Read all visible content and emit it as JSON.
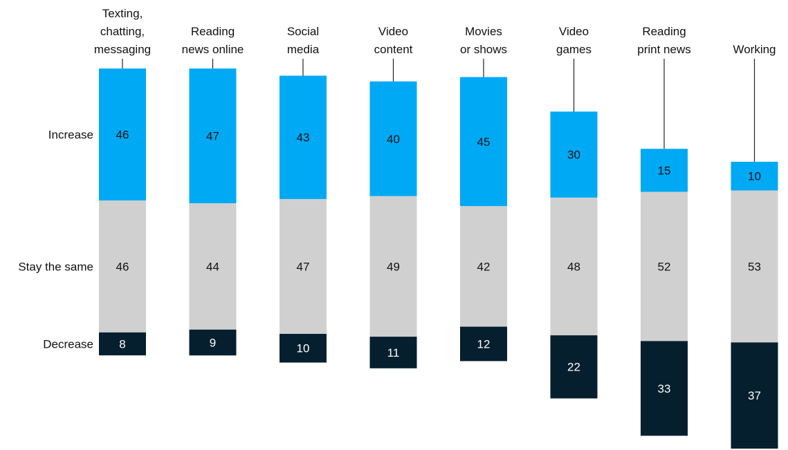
{
  "chart_data": {
    "type": "bar",
    "stacked": true,
    "categories": [
      "Texting, chatting, messaging",
      "Reading news online",
      "Social media",
      "Video content",
      "Movies or shows",
      "Video games",
      "Reading print news",
      "Working"
    ],
    "category_label_lines": [
      [
        "Texting,",
        "chatting,",
        "messaging"
      ],
      [
        "Reading",
        "news online"
      ],
      [
        "Social",
        "media"
      ],
      [
        "Video",
        "content"
      ],
      [
        "Movies",
        "or shows"
      ],
      [
        "Video",
        "games"
      ],
      [
        "Reading",
        "print news"
      ],
      [
        "Working"
      ]
    ],
    "series": [
      {
        "name": "Increase",
        "values": [
          46,
          47,
          43,
          40,
          45,
          30,
          15,
          10
        ]
      },
      {
        "name": "Stay the same",
        "values": [
          46,
          44,
          47,
          49,
          42,
          48,
          52,
          53
        ]
      },
      {
        "name": "Decrease",
        "values": [
          8,
          9,
          10,
          11,
          12,
          22,
          33,
          37
        ]
      }
    ],
    "colors": {
      "Increase": "#00a9f4",
      "Stay the same": "#d0d0d0",
      "Decrease": "#061f2f"
    },
    "label_colors": {
      "Increase": "#111111",
      "Stay the same": "#111111",
      "Decrease": "#ffffff"
    },
    "series_labels_position": "left of first bar",
    "grid": false
  }
}
